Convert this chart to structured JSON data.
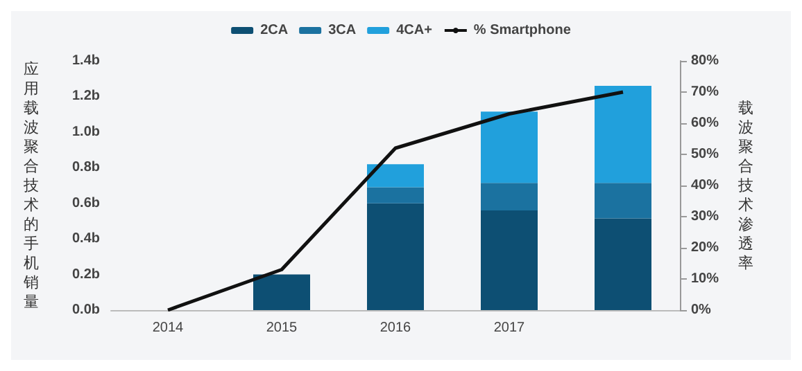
{
  "chart_data": {
    "type": "bar",
    "stacked": true,
    "categories": [
      "2014",
      "2015",
      "2016",
      "2017",
      null
    ],
    "ylabel": "应用载波聚合技术的手机销量",
    "y2label": "载波聚合技术渗透率",
    "series": [
      {
        "name": "2CA",
        "color": "#0d4f73",
        "values": [
          0,
          0.2,
          0.6,
          0.56,
          0.515
        ]
      },
      {
        "name": "3CA",
        "color": "#1b72a0",
        "values": [
          0,
          0,
          0.09,
          0.155,
          0.2
        ]
      },
      {
        "name": "4CA+",
        "color": "#21a0dc",
        "values": [
          0,
          0,
          0.13,
          0.4,
          0.545
        ]
      },
      {
        "name": "% Smartphone",
        "type": "line",
        "axis": "y2",
        "color": "#111111",
        "values": [
          0,
          13,
          52,
          63,
          70
        ]
      }
    ],
    "ylim": [
      0,
      1.4
    ],
    "yticks": [
      {
        "value": 0,
        "label": "0.0b"
      },
      {
        "value": 0.2,
        "label": "0.2b"
      },
      {
        "value": 0.4,
        "label": "0.4b"
      },
      {
        "value": 0.6,
        "label": "0.6b"
      },
      {
        "value": 0.8,
        "label": "0.8b"
      },
      {
        "value": 1.0,
        "label": "1.0b"
      },
      {
        "value": 1.2,
        "label": "1.2b"
      },
      {
        "value": 1.4,
        "label": "1.4b"
      }
    ],
    "y2lim": [
      0,
      80
    ],
    "y2ticks": [
      {
        "value": 0,
        "label": "0%"
      },
      {
        "value": 10,
        "label": "10%"
      },
      {
        "value": 20,
        "label": "20%"
      },
      {
        "value": 30,
        "label": "30%"
      },
      {
        "value": 40,
        "label": "40%"
      },
      {
        "value": 50,
        "label": "50%"
      },
      {
        "value": 60,
        "label": "60%"
      },
      {
        "value": 70,
        "label": "70%"
      },
      {
        "value": 80,
        "label": "80%"
      }
    ],
    "grid": false,
    "legend": "top",
    "marker": "none"
  }
}
